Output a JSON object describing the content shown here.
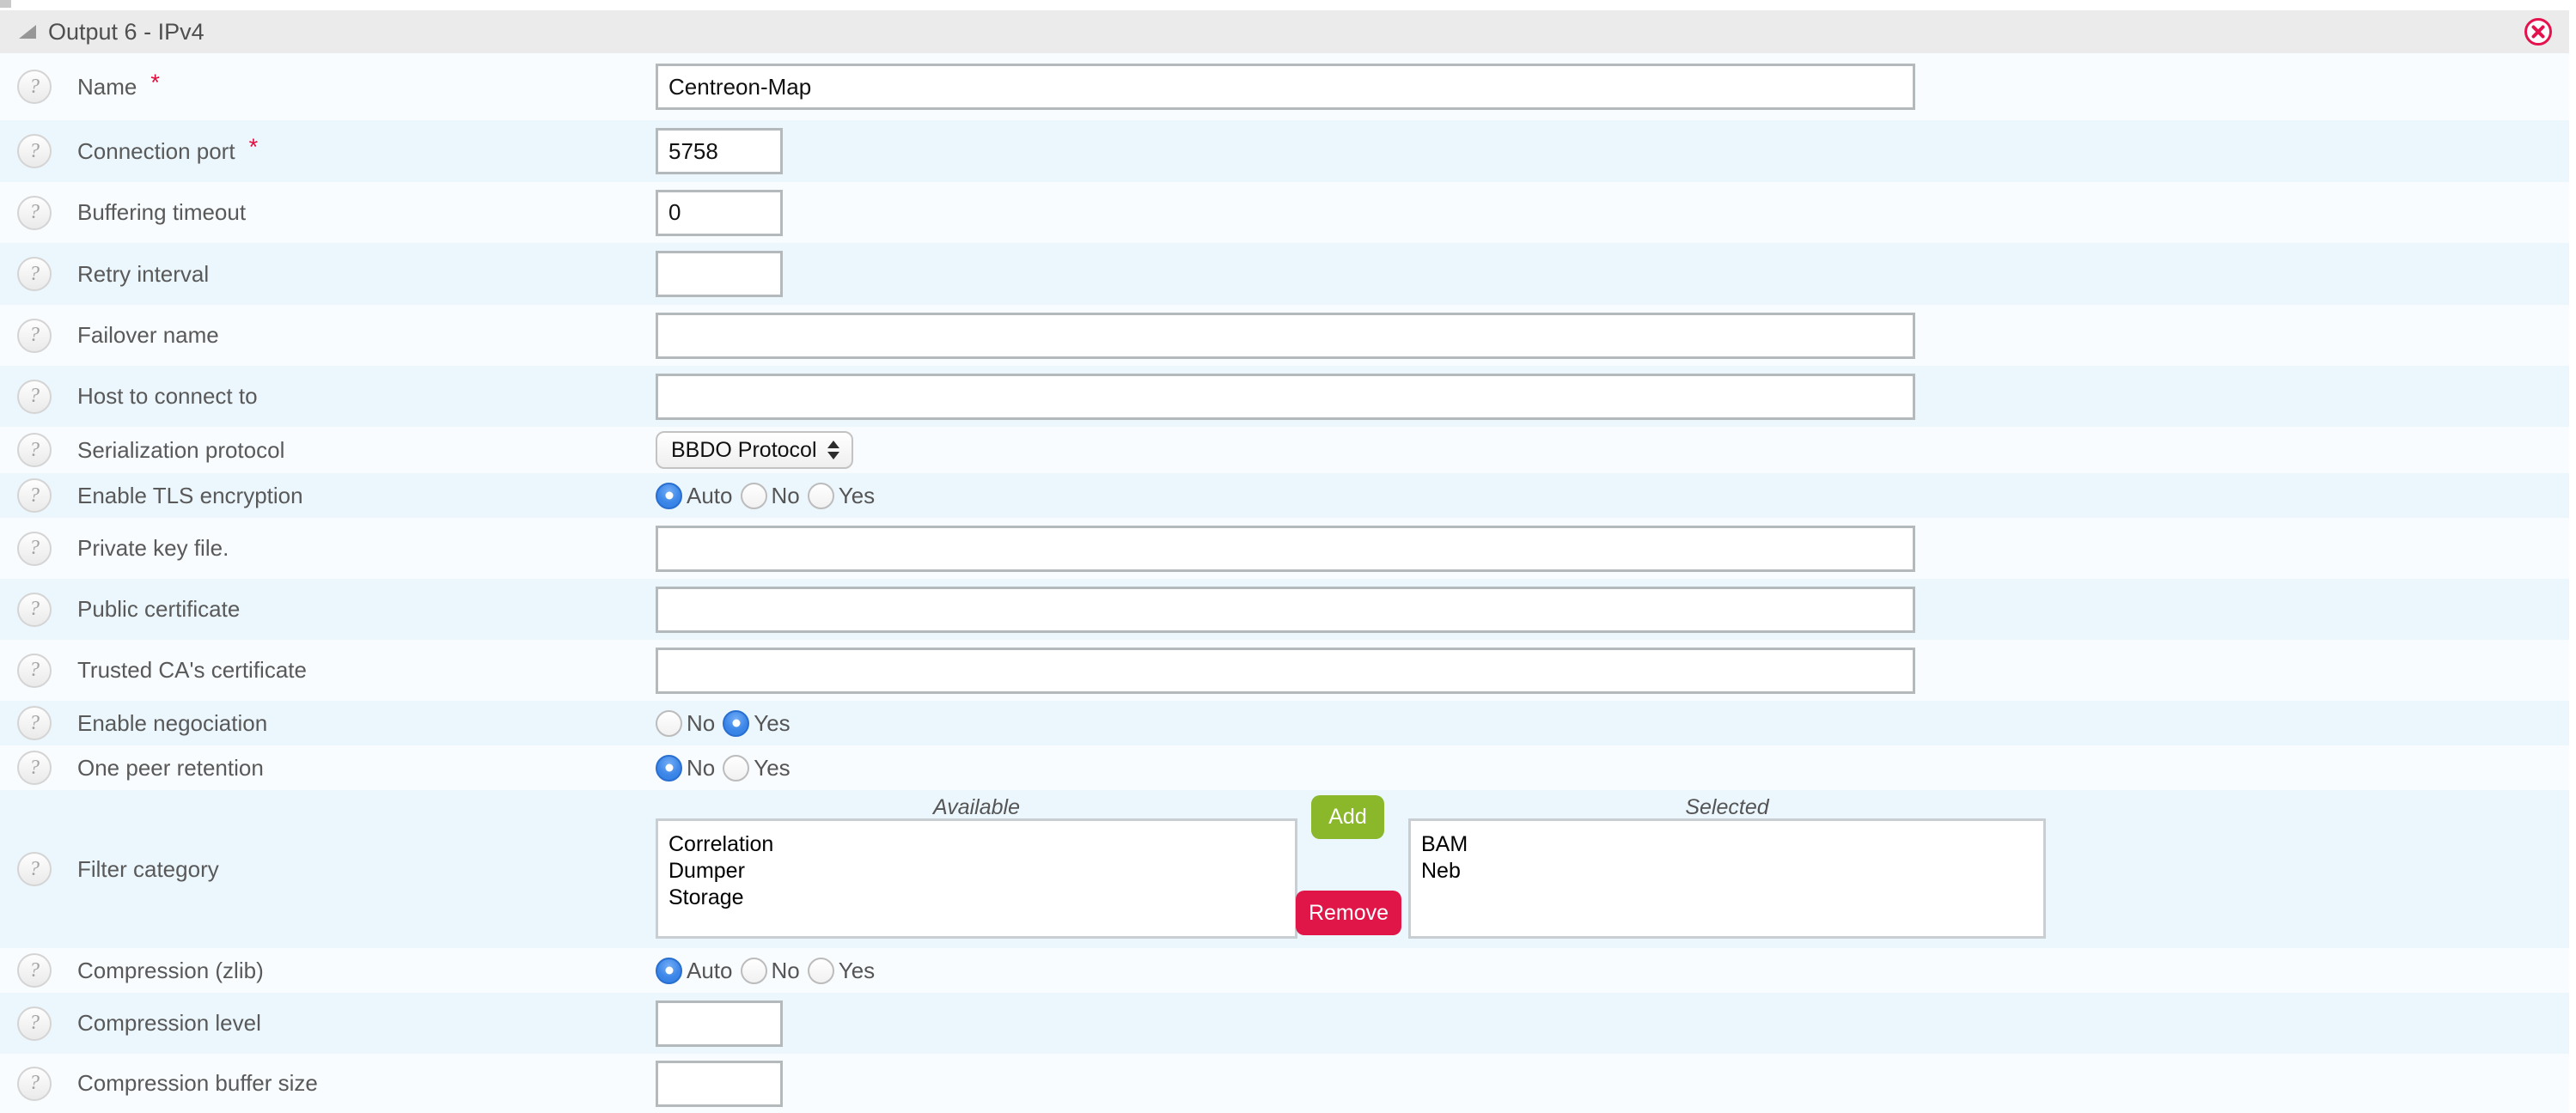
{
  "ui": {
    "help_glyph": "?",
    "required_marker": "*"
  },
  "colors": {
    "header_bg": "#ebebeb",
    "row_base": "#f8fcfe",
    "row_alt": "#ecf7fd",
    "add_green": "#8bb82b",
    "remove_red": "#e01648",
    "radio_blue": "#3d87e8",
    "required_red": "#e00b3d",
    "close_red": "#e4134e"
  },
  "header": {
    "title": "Output 6 - IPv4"
  },
  "rows": [
    {
      "label": "Name",
      "required": true,
      "type": "text",
      "size": "long",
      "value": "Centreon-Map"
    },
    {
      "label": "Connection port",
      "required": true,
      "type": "text",
      "size": "short",
      "value": "5758"
    },
    {
      "label": "Buffering timeout",
      "type": "text",
      "size": "short",
      "value": "0"
    },
    {
      "label": "Retry interval",
      "type": "text",
      "size": "short",
      "value": ""
    },
    {
      "label": "Failover name",
      "type": "text",
      "size": "long",
      "value": ""
    },
    {
      "label": "Host to connect to",
      "type": "text",
      "size": "long",
      "value": ""
    },
    {
      "label": "Serialization protocol",
      "type": "select",
      "value": "BBDO Protocol"
    },
    {
      "label": "Enable TLS encryption",
      "type": "radio",
      "options": [
        "Auto",
        "No",
        "Yes"
      ],
      "selected": "Auto"
    },
    {
      "label": "Private key file.",
      "type": "text",
      "size": "long",
      "value": ""
    },
    {
      "label": "Public certificate",
      "type": "text",
      "size": "long",
      "value": ""
    },
    {
      "label": "Trusted CA's certificate",
      "type": "text",
      "size": "long",
      "value": ""
    },
    {
      "label": "Enable negociation",
      "type": "radio",
      "options": [
        "No",
        "Yes"
      ],
      "selected": "Yes"
    },
    {
      "label": "One peer retention",
      "type": "radio",
      "options": [
        "No",
        "Yes"
      ],
      "selected": "No"
    },
    {
      "label": "Filter category",
      "type": "duallist",
      "available_label": "Available",
      "selected_label": "Selected",
      "available": [
        "Correlation",
        "Dumper",
        "Storage"
      ],
      "selected_items": [
        "BAM",
        "Neb"
      ],
      "add_label": "Add",
      "remove_label": "Remove"
    },
    {
      "label": "Compression (zlib)",
      "type": "radio",
      "options": [
        "Auto",
        "No",
        "Yes"
      ],
      "selected": "Auto"
    },
    {
      "label": "Compression level",
      "type": "text",
      "size": "short",
      "value": ""
    },
    {
      "label": "Compression buffer size",
      "type": "text",
      "size": "short",
      "value": ""
    }
  ]
}
